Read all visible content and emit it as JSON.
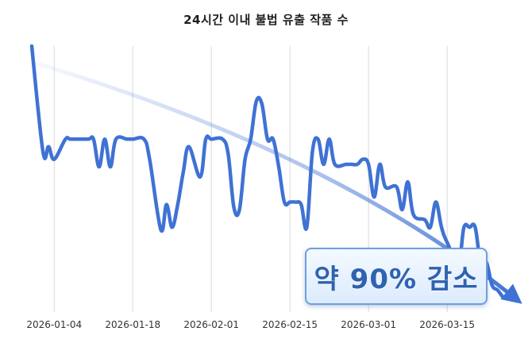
{
  "chart_data": {
    "type": "line",
    "title": "24시간 이내 불법 유출 작품 수",
    "xlabel": "",
    "ylabel": "",
    "x_ticks": [
      "2026-01-04",
      "2026-01-18",
      "2026-02-01",
      "2026-02-15",
      "2026-03-01",
      "2026-03-15"
    ],
    "x_range": [
      "2025-12-31",
      "2026-03-28"
    ],
    "y_range": [
      0,
      100
    ],
    "grid": {
      "x": true,
      "y": false
    },
    "legend": "none",
    "series": [
      {
        "name": "",
        "color": "#3f72d4",
        "points": [
          [
            "2025-12-31",
            100
          ],
          [
            "2026-01-02",
            58
          ],
          [
            "2026-01-03",
            60
          ],
          [
            "2026-01-04",
            55
          ],
          [
            "2026-01-06",
            63
          ],
          [
            "2026-01-07",
            63
          ],
          [
            "2026-01-10",
            63
          ],
          [
            "2026-01-11",
            63
          ],
          [
            "2026-01-12",
            52
          ],
          [
            "2026-01-13",
            63
          ],
          [
            "2026-01-14",
            52
          ],
          [
            "2026-01-15",
            63
          ],
          [
            "2026-01-17",
            63
          ],
          [
            "2026-01-18",
            63
          ],
          [
            "2026-01-20",
            63
          ],
          [
            "2026-01-21",
            55
          ],
          [
            "2026-01-23",
            27
          ],
          [
            "2026-01-24",
            37
          ],
          [
            "2026-01-25",
            28
          ],
          [
            "2026-01-26",
            37
          ],
          [
            "2026-01-27",
            50
          ],
          [
            "2026-01-28",
            60
          ],
          [
            "2026-01-30",
            48
          ],
          [
            "2026-01-31",
            63
          ],
          [
            "2026-02-01",
            63
          ],
          [
            "2026-02-03",
            63
          ],
          [
            "2026-02-04",
            57
          ],
          [
            "2026-02-05",
            36
          ],
          [
            "2026-02-06",
            35
          ],
          [
            "2026-02-07",
            55
          ],
          [
            "2026-02-08",
            63
          ],
          [
            "2026-02-09",
            78
          ],
          [
            "2026-02-10",
            77
          ],
          [
            "2026-02-11",
            63
          ],
          [
            "2026-02-12",
            63
          ],
          [
            "2026-02-13",
            52
          ],
          [
            "2026-02-14",
            38
          ],
          [
            "2026-02-15",
            38
          ],
          [
            "2026-02-16",
            38
          ],
          [
            "2026-02-17",
            37
          ],
          [
            "2026-02-18",
            28
          ],
          [
            "2026-02-19",
            58
          ],
          [
            "2026-02-20",
            63
          ],
          [
            "2026-02-21",
            53
          ],
          [
            "2026-02-22",
            63
          ],
          [
            "2026-02-23",
            53
          ],
          [
            "2026-02-25",
            53
          ],
          [
            "2026-02-26",
            53
          ],
          [
            "2026-02-27",
            53
          ],
          [
            "2026-02-28",
            55
          ],
          [
            "2026-03-01",
            53
          ],
          [
            "2026-03-02",
            40
          ],
          [
            "2026-03-03",
            53
          ],
          [
            "2026-03-04",
            44
          ],
          [
            "2026-03-06",
            44
          ],
          [
            "2026-03-07",
            35
          ],
          [
            "2026-03-08",
            46
          ],
          [
            "2026-03-09",
            33
          ],
          [
            "2026-03-11",
            31
          ],
          [
            "2026-03-12",
            28
          ],
          [
            "2026-03-13",
            38
          ],
          [
            "2026-03-14",
            28
          ],
          [
            "2026-03-15",
            22
          ],
          [
            "2026-03-17",
            14
          ],
          [
            "2026-03-18",
            28
          ],
          [
            "2026-03-19",
            28
          ],
          [
            "2026-03-20",
            28
          ],
          [
            "2026-03-21",
            13
          ],
          [
            "2026-03-22",
            14
          ],
          [
            "2026-03-23",
            5
          ],
          [
            "2026-03-24",
            3
          ],
          [
            "2026-03-25",
            0
          ]
        ]
      }
    ],
    "trend_arrow": {
      "from": [
        "2026-01-01",
        93
      ],
      "to": [
        "2026-03-27",
        0
      ],
      "color": "#3f72d4"
    },
    "annotations": [
      {
        "text": "약 90% 감소"
      }
    ]
  }
}
